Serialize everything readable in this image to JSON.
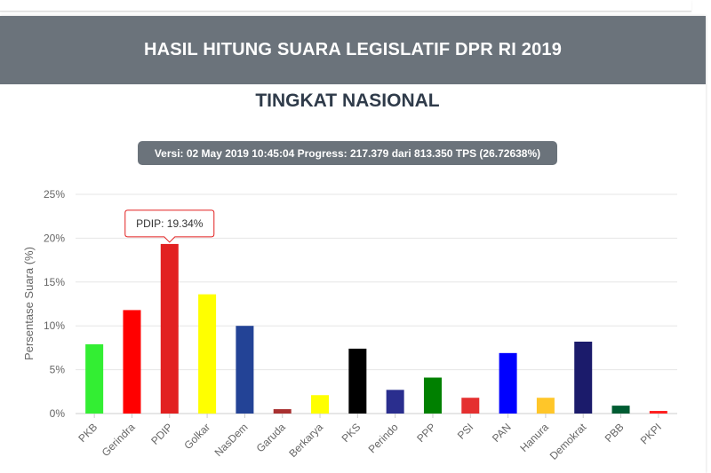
{
  "header": {
    "title": "HASIL HITUNG SUARA LEGISLATIF DPR RI 2019"
  },
  "subtitle": "TINGKAT NASIONAL",
  "version_info": "Versi: 02 May 2019 10:45:04 Progress: 217.379 dari 813.350 TPS (26.72638%)",
  "chart_data": {
    "type": "bar",
    "title": "TINGKAT NASIONAL",
    "xlabel": "",
    "ylabel": "Persentase Suara (%)",
    "ylim": [
      0,
      25
    ],
    "yticks": [
      0,
      5,
      10,
      15,
      20,
      25
    ],
    "ytick_labels": [
      "0%",
      "5%",
      "10%",
      "15%",
      "20%",
      "25%"
    ],
    "grid": true,
    "categories": [
      "PKB",
      "Gerindra",
      "PDIP",
      "Golkar",
      "NasDem",
      "Garuda",
      "Berkarya",
      "PKS",
      "Perindo",
      "PPP",
      "PSI",
      "PAN",
      "Hanura",
      "Demokrat",
      "PBB",
      "PKPI"
    ],
    "values": [
      7.9,
      11.8,
      19.34,
      13.6,
      10.0,
      0.5,
      2.1,
      7.4,
      2.7,
      4.1,
      1.8,
      6.9,
      1.8,
      8.2,
      0.9,
      0.3
    ],
    "colors": [
      "#33ee33",
      "#ff0000",
      "#e22121",
      "#ffff00",
      "#234396",
      "#a83030",
      "#ffff00",
      "#000000",
      "#2a2e8e",
      "#008000",
      "#e53030",
      "#0000ff",
      "#ffc629",
      "#1b1b6b",
      "#005c32",
      "#ff2020"
    ],
    "tooltip": {
      "category": "PDIP",
      "text": "PDIP: 19.34%",
      "border_color": "#e22121"
    }
  }
}
